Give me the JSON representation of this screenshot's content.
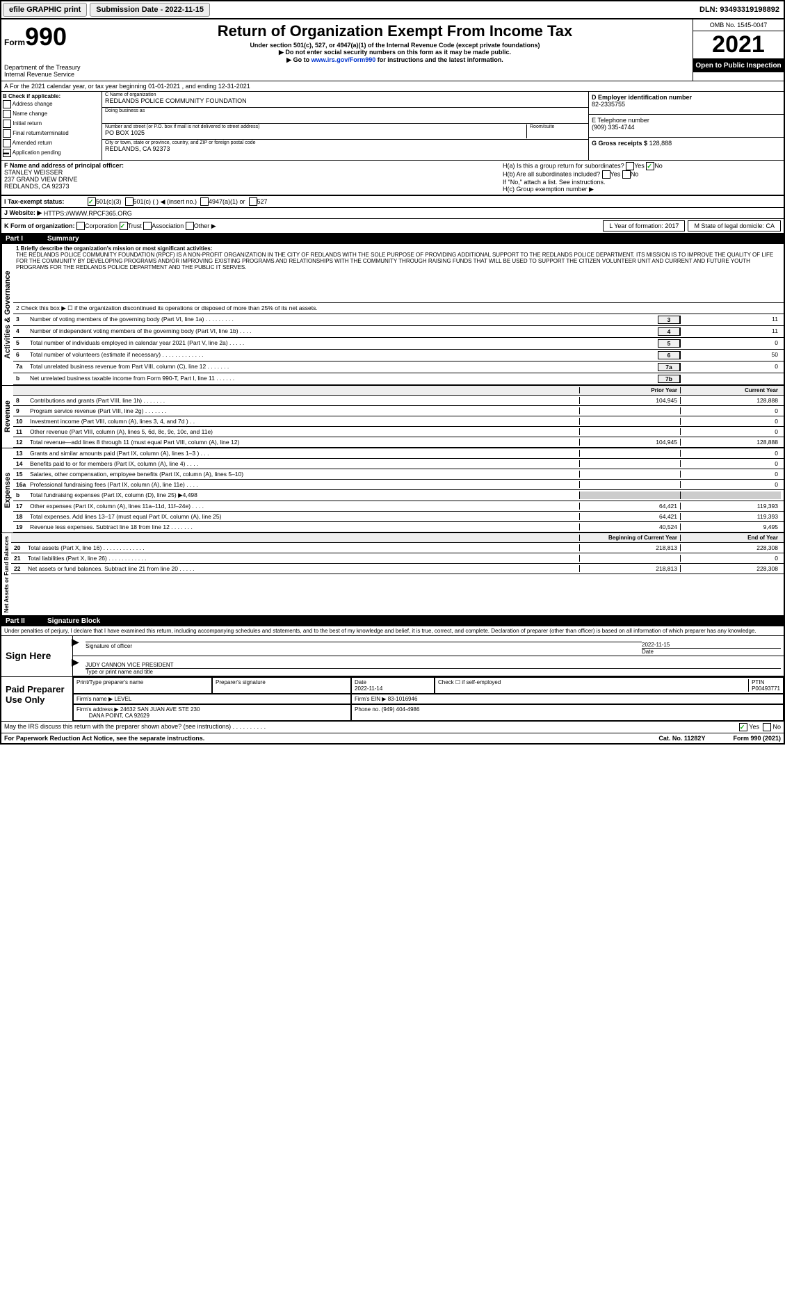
{
  "top": {
    "efile": "efile GRAPHIC print",
    "submission": "Submission Date - 2022-11-15",
    "dln": "DLN: 93493319198892"
  },
  "header": {
    "form_label": "Form",
    "form_num": "990",
    "title": "Return of Organization Exempt From Income Tax",
    "sub1": "Under section 501(c), 527, or 4947(a)(1) of the Internal Revenue Code (except private foundations)",
    "sub2": "▶ Do not enter social security numbers on this form as it may be made public.",
    "sub3_pre": "▶ Go to ",
    "sub3_link": "www.irs.gov/Form990",
    "sub3_post": " for instructions and the latest information.",
    "dept1": "Department of the Treasury",
    "dept2": "Internal Revenue Service",
    "omb": "OMB No. 1545-0047",
    "year": "2021",
    "open": "Open to Public Inspection"
  },
  "row_a": "A For the 2021 calendar year, or tax year beginning 01-01-2021   , and ending 12-31-2021",
  "col_b": {
    "title": "B Check if applicable:",
    "items": [
      "Address change",
      "Name change",
      "Initial return",
      "Final return/terminated",
      "Amended return",
      "Application pending"
    ]
  },
  "col_c": {
    "name_label": "C Name of organization",
    "name": "REDLANDS POLICE COMMUNITY FOUNDATION",
    "dba_label": "Doing business as",
    "dba": "",
    "addr_label": "Number and street (or P.O. box if mail is not delivered to street address)",
    "room_label": "Room/suite",
    "addr": "PO BOX 1025",
    "city_label": "City or town, state or province, country, and ZIP or foreign postal code",
    "city": "REDLANDS, CA  92373"
  },
  "col_d": {
    "ein_label": "D Employer identification number",
    "ein": "82-2335755",
    "phone_label": "E Telephone number",
    "phone": "(909) 335-4744",
    "gross_label": "G Gross receipts $",
    "gross": "128,888"
  },
  "row_f": {
    "f_label": "F Name and address of principal officer:",
    "f_name": "STANLEY WEISSER",
    "f_addr1": "237 GRAND VIEW DRIVE",
    "f_addr2": "REDLANDS, CA  92373",
    "h_a": "H(a)  Is this a group return for subordinates?",
    "h_a_yes": "Yes",
    "h_a_no": "No",
    "h_b": "H(b)  Are all subordinates included?",
    "h_b_yes": "Yes",
    "h_b_no": "No",
    "h_b_note": "If \"No,\" attach a list. See instructions.",
    "h_c": "H(c)  Group exemption number ▶"
  },
  "row_i": {
    "label": "I  Tax-exempt status:",
    "c1": "501(c)(3)",
    "c2": "501(c) (  ) ◀ (insert no.)",
    "c3": "4947(a)(1) or",
    "c4": "527"
  },
  "row_j": {
    "label": "J  Website: ▶",
    "url": "HTTPS://WWW.RPCF365.ORG"
  },
  "row_k": {
    "label": "K Form of organization:",
    "corp": "Corporation",
    "trust": "Trust",
    "assoc": "Association",
    "other": "Other ▶",
    "l": "L Year of formation: 2017",
    "m": "M State of legal domicile: CA"
  },
  "part1": {
    "header": "Part I",
    "title": "Summary",
    "vert1": "Activities & Governance",
    "vert2": "Revenue",
    "vert3": "Expenses",
    "vert4": "Net Assets or Fund Balances",
    "line1_label": "1  Briefly describe the organization's mission or most significant activities:",
    "mission": "THE REDLANDS POLICE COMMUNITY FOUNDATION (RPCF) IS A NON-PROFIT ORGANIZATION IN THE CITY OF REDLANDS WITH THE SOLE PURPOSE OF PROVIDING ADDITIONAL SUPPORT TO THE REDLANDS POLICE DEPARTMENT. ITS MISSION IS TO IMPROVE THE QUALITY OF LIFE FOR THE COMMUNITY BY DEVELOPING PROGRAMS AND/OR IMPROVING EXISTING PROGRAMS AND RELATIONSHIPS WITH THE COMMUNITY THROUGH RAISING FUNDS THAT WILL BE USED TO SUPPORT THE CITIZEN VOLUNTEER UNIT AND CURRENT AND FUTURE YOUTH PROGRAMS FOR THE REDLANDS POLICE DEPARTMENT AND THE PUBLIC IT SERVES.",
    "line2": "2  Check this box ▶ ☐ if the organization discontinued its operations or disposed of more than 25% of its net assets.",
    "lines_gov": [
      {
        "n": "3",
        "t": "Number of voting members of the governing body (Part VI, line 1a)  .  .  .  .  .  .  .  .  .",
        "b": "3",
        "v": "11"
      },
      {
        "n": "4",
        "t": "Number of independent voting members of the governing body (Part VI, line 1b)  .  .  .  .",
        "b": "4",
        "v": "11"
      },
      {
        "n": "5",
        "t": "Total number of individuals employed in calendar year 2021 (Part V, line 2a)  .  .  .  .  .",
        "b": "5",
        "v": "0"
      },
      {
        "n": "6",
        "t": "Total number of volunteers (estimate if necessary)  .  .  .  .  .  .  .  .  .  .  .  .  .",
        "b": "6",
        "v": "50"
      },
      {
        "n": "7a",
        "t": "Total unrelated business revenue from Part VIII, column (C), line 12  .  .  .  .  .  .  .",
        "b": "7a",
        "v": "0"
      },
      {
        "n": "b",
        "t": "Net unrelated business taxable income from Form 990-T, Part I, line 11  .  .  .  .  .  .",
        "b": "7b",
        "v": ""
      }
    ],
    "prior": "Prior Year",
    "current": "Current Year",
    "lines_rev": [
      {
        "n": "8",
        "t": "Contributions and grants (Part VIII, line 1h)  .  .  .  .  .  .  .",
        "p": "104,945",
        "c": "128,888"
      },
      {
        "n": "9",
        "t": "Program service revenue (Part VIII, line 2g)  .  .  .  .  .  .  .",
        "p": "",
        "c": "0"
      },
      {
        "n": "10",
        "t": "Investment income (Part VIII, column (A), lines 3, 4, and 7d )  .  .",
        "p": "",
        "c": "0"
      },
      {
        "n": "11",
        "t": "Other revenue (Part VIII, column (A), lines 5, 6d, 8c, 9c, 10c, and 11e)",
        "p": "",
        "c": "0"
      },
      {
        "n": "12",
        "t": "Total revenue—add lines 8 through 11 (must equal Part VIII, column (A), line 12)",
        "p": "104,945",
        "c": "128,888"
      }
    ],
    "lines_exp": [
      {
        "n": "13",
        "t": "Grants and similar amounts paid (Part IX, column (A), lines 1–3 )  .  .  .",
        "p": "",
        "c": "0"
      },
      {
        "n": "14",
        "t": "Benefits paid to or for members (Part IX, column (A), line 4)  .  .  .  .",
        "p": "",
        "c": "0"
      },
      {
        "n": "15",
        "t": "Salaries, other compensation, employee benefits (Part IX, column (A), lines 5–10)",
        "p": "",
        "c": "0"
      },
      {
        "n": "16a",
        "t": "Professional fundraising fees (Part IX, column (A), line 11e)  .  .  .  .",
        "p": "",
        "c": "0"
      },
      {
        "n": "b",
        "t": "Total fundraising expenses (Part IX, column (D), line 25) ▶4,498",
        "p": "shaded",
        "c": "shaded"
      },
      {
        "n": "17",
        "t": "Other expenses (Part IX, column (A), lines 11a–11d, 11f–24e)  .  .  .  .",
        "p": "64,421",
        "c": "119,393"
      },
      {
        "n": "18",
        "t": "Total expenses. Add lines 13–17 (must equal Part IX, column (A), line 25)",
        "p": "64,421",
        "c": "119,393"
      },
      {
        "n": "19",
        "t": "Revenue less expenses. Subtract line 18 from line 12  .  .  .  .  .  .  .",
        "p": "40,524",
        "c": "9,495"
      }
    ],
    "beg": "Beginning of Current Year",
    "end": "End of Year",
    "lines_net": [
      {
        "n": "20",
        "t": "Total assets (Part X, line 16)  .  .  .  .  .  .  .  .  .  .  .  .  .",
        "p": "218,813",
        "c": "228,308"
      },
      {
        "n": "21",
        "t": "Total liabilities (Part X, line 26)  .  .  .  .  .  .  .  .  .  .  .  .",
        "p": "",
        "c": "0"
      },
      {
        "n": "22",
        "t": "Net assets or fund balances. Subtract line 21 from line 20  .  .  .  .  .",
        "p": "218,813",
        "c": "228,308"
      }
    ]
  },
  "part2": {
    "header": "Part II",
    "title": "Signature Block",
    "penalty": "Under penalties of perjury, I declare that I have examined this return, including accompanying schedules and statements, and to the best of my knowledge and belief, it is true, correct, and complete. Declaration of preparer (other than officer) is based on all information of which preparer has any knowledge.",
    "sign_here": "Sign Here",
    "sig_officer": "Signature of officer",
    "date": "Date",
    "date_val": "2022-11-15",
    "name_title": "JUDY CANNON VICE PRESIDENT",
    "type_name": "Type or print name and title",
    "paid": "Paid Preparer Use Only",
    "prep_name_label": "Print/Type preparer's name",
    "prep_sig_label": "Preparer's signature",
    "prep_date_label": "Date",
    "prep_date": "2022-11-14",
    "check_self": "Check ☐ if self-employed",
    "ptin_label": "PTIN",
    "ptin": "P00493771",
    "firm_name_label": "Firm's name  ▶",
    "firm_name": "LEVEL",
    "firm_ein_label": "Firm's EIN ▶",
    "firm_ein": "83-1016946",
    "firm_addr_label": "Firm's address ▶",
    "firm_addr": "24632 SAN JUAN AVE STE 230",
    "firm_city": "DANA POINT, CA  92629",
    "phone_label": "Phone no.",
    "phone": "(949) 404-4986"
  },
  "footer": {
    "discuss": "May the IRS discuss this return with the preparer shown above? (see instructions)  .  .  .  .  .  .  .  .  .  .",
    "yes": "Yes",
    "no": "No",
    "paperwork": "For Paperwork Reduction Act Notice, see the separate instructions.",
    "cat": "Cat. No. 11282Y",
    "form": "Form 990 (2021)"
  }
}
